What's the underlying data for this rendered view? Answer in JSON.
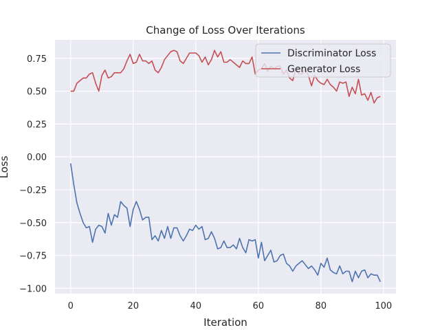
{
  "chart_data": {
    "type": "line",
    "title": "Change of Loss Over Iterations",
    "xlabel": "Iteration",
    "ylabel": "Loss",
    "xlim": [
      -5,
      104
    ],
    "ylim": [
      -1.04,
      0.89
    ],
    "xticks": [
      0,
      20,
      40,
      60,
      80,
      100
    ],
    "yticks": [
      -1.0,
      -0.75,
      -0.5,
      -0.25,
      0.0,
      0.25,
      0.5,
      0.75
    ],
    "ytick_labels": [
      "−1.00",
      "−0.75",
      "−0.50",
      "−0.25",
      "0.00",
      "0.25",
      "0.50",
      "0.75"
    ],
    "xtick_labels": [
      "0",
      "20",
      "40",
      "60",
      "80",
      "100"
    ],
    "grid": true,
    "legend_position": "top-right",
    "background": "#eaeaf2",
    "series": [
      {
        "name": "Discriminator Loss",
        "color": "#4c72b0",
        "values": [
          -0.05,
          -0.21,
          -0.35,
          -0.43,
          -0.5,
          -0.54,
          -0.53,
          -0.65,
          -0.55,
          -0.52,
          -0.53,
          -0.58,
          -0.43,
          -0.52,
          -0.44,
          -0.46,
          -0.34,
          -0.37,
          -0.39,
          -0.53,
          -0.4,
          -0.34,
          -0.4,
          -0.48,
          -0.46,
          -0.46,
          -0.63,
          -0.6,
          -0.64,
          -0.56,
          -0.62,
          -0.53,
          -0.62,
          -0.54,
          -0.54,
          -0.6,
          -0.64,
          -0.6,
          -0.55,
          -0.56,
          -0.52,
          -0.55,
          -0.53,
          -0.63,
          -0.62,
          -0.57,
          -0.62,
          -0.7,
          -0.69,
          -0.64,
          -0.69,
          -0.69,
          -0.67,
          -0.7,
          -0.62,
          -0.69,
          -0.73,
          -0.63,
          -0.64,
          -0.63,
          -0.77,
          -0.65,
          -0.79,
          -0.75,
          -0.71,
          -0.8,
          -0.79,
          -0.75,
          -0.74,
          -0.81,
          -0.83,
          -0.87,
          -0.83,
          -0.81,
          -0.79,
          -0.82,
          -0.85,
          -0.83,
          -0.86,
          -0.9,
          -0.81,
          -0.84,
          -0.77,
          -0.86,
          -0.88,
          -0.89,
          -0.83,
          -0.89,
          -0.87,
          -0.87,
          -0.95,
          -0.87,
          -0.92,
          -0.87,
          -0.86,
          -0.92,
          -0.89,
          -0.9,
          -0.9,
          -0.95
        ]
      },
      {
        "name": "Generator Loss",
        "color": "#c44e52",
        "values": [
          0.5,
          0.5,
          0.56,
          0.58,
          0.6,
          0.6,
          0.63,
          0.64,
          0.56,
          0.5,
          0.62,
          0.66,
          0.6,
          0.61,
          0.64,
          0.64,
          0.64,
          0.67,
          0.73,
          0.78,
          0.71,
          0.72,
          0.78,
          0.73,
          0.73,
          0.71,
          0.73,
          0.66,
          0.64,
          0.68,
          0.74,
          0.77,
          0.8,
          0.81,
          0.8,
          0.73,
          0.71,
          0.75,
          0.79,
          0.79,
          0.79,
          0.77,
          0.72,
          0.76,
          0.7,
          0.74,
          0.81,
          0.76,
          0.8,
          0.72,
          0.72,
          0.74,
          0.72,
          0.7,
          0.68,
          0.73,
          0.71,
          0.71,
          0.76,
          0.63,
          0.66,
          0.67,
          0.71,
          0.65,
          0.69,
          0.67,
          0.69,
          0.69,
          0.63,
          0.66,
          0.6,
          0.58,
          0.67,
          0.63,
          0.63,
          0.67,
          0.62,
          0.54,
          0.62,
          0.58,
          0.56,
          0.55,
          0.59,
          0.55,
          0.53,
          0.5,
          0.57,
          0.56,
          0.57,
          0.46,
          0.53,
          0.48,
          0.59,
          0.47,
          0.48,
          0.43,
          0.49,
          0.41,
          0.45,
          0.46
        ]
      }
    ]
  }
}
